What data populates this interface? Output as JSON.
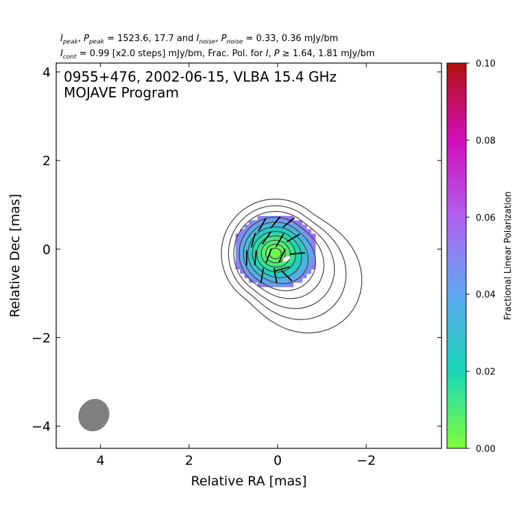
{
  "header": {
    "line1": {
      "i": "I",
      "i_sub": "peak",
      "p": "P",
      "p_sub": "peak",
      "peak_vals": "= 1523.6, 17.7 and",
      "in": "I",
      "in_sub": "noise",
      "pn": "P",
      "pn_sub": "noise",
      "noise_vals": "= 0.33, 0.36 mJy/bm"
    },
    "line2": {
      "ic": "I",
      "ic_sub": "cont",
      "cont_vals": "= 0.99 [x2.0 steps] mJy/bm, Frac. Pol. for",
      "ii": "I",
      "pp": "P",
      "ge": "≥",
      "thresh_vals": "1.64, 1.81 mJy/bm"
    }
  },
  "chart_data": {
    "type": "heatmap",
    "title_lines": [
      "0955+476, 2002-06-15, VLBA 15.4 GHz",
      "MOJAVE Program"
    ],
    "xlabel": "Relative RA [mas]",
    "ylabel": "Relative Dec [mas]",
    "xlim": [
      5.0,
      -3.7
    ],
    "ylim": [
      -4.5,
      4.2
    ],
    "xticks": [
      4,
      2,
      0,
      -2
    ],
    "yticks": [
      4,
      2,
      0,
      -2,
      -4
    ],
    "xtick_labels": [
      "4",
      "2",
      "0",
      "−2"
    ],
    "ytick_labels": [
      "4",
      "2",
      "0",
      "−2",
      "−4"
    ],
    "beam": {
      "x": 4.15,
      "y": -3.75,
      "major_mas": 0.75,
      "minor_mas": 0.68,
      "pa_deg": 30,
      "color": "#808080"
    },
    "contours": {
      "center": [
        0.05,
        -0.1
      ],
      "radii_rx": [
        0.13,
        0.22,
        0.32,
        0.42,
        0.52,
        0.62,
        0.72,
        0.82,
        0.94,
        1.06,
        1.22
      ],
      "radii_ry": [
        0.12,
        0.21,
        0.3,
        0.4,
        0.5,
        0.6,
        0.71,
        0.82,
        0.95,
        1.08,
        1.23
      ],
      "color": "#404040"
    },
    "polarization": {
      "center": [
        0.05,
        -0.05
      ],
      "rx": 0.95,
      "ry": 0.85,
      "min_fp": 0.003,
      "max_fp": 0.055
    },
    "evpa_ticks": [
      {
        "x": 0.35,
        "y": 0.55,
        "angle": 60
      },
      {
        "x": 0.05,
        "y": 0.6,
        "angle": 50
      },
      {
        "x": -0.25,
        "y": 0.6,
        "angle": 40
      },
      {
        "x": 0.55,
        "y": 0.2,
        "angle": 75
      },
      {
        "x": 0.25,
        "y": 0.25,
        "angle": 55
      },
      {
        "x": -0.05,
        "y": 0.2,
        "angle": 60
      },
      {
        "x": -0.35,
        "y": 0.25,
        "angle": 30
      },
      {
        "x": 0.5,
        "y": -0.2,
        "angle": 85
      },
      {
        "x": 0.2,
        "y": -0.15,
        "angle": 70
      },
      {
        "x": -0.1,
        "y": -0.15,
        "angle": 65
      },
      {
        "x": -0.45,
        "y": -0.1,
        "angle": 5
      },
      {
        "x": 0.35,
        "y": -0.6,
        "angle": 80
      },
      {
        "x": 0.05,
        "y": -0.6,
        "angle": 100
      },
      {
        "x": -0.2,
        "y": -0.6,
        "angle": -45
      },
      {
        "x": 0.7,
        "y": -0.2,
        "angle": 90
      },
      {
        "x": -0.1,
        "y": -0.45,
        "angle": 15
      }
    ],
    "colorbar": {
      "label": "Fractional Linear Polarization",
      "min": 0.0,
      "max": 0.1,
      "ticks": [
        0.0,
        0.02,
        0.04,
        0.06,
        0.08,
        0.1
      ],
      "tick_labels": [
        "0.00",
        "0.02",
        "0.04",
        "0.06",
        "0.08",
        "0.10"
      ],
      "stops": [
        {
          "v": 0.0,
          "c": "#7fff3a"
        },
        {
          "v": 0.02,
          "c": "#19d6b8"
        },
        {
          "v": 0.04,
          "c": "#5fa8f0"
        },
        {
          "v": 0.06,
          "c": "#b061f0"
        },
        {
          "v": 0.08,
          "c": "#d10dba"
        },
        {
          "v": 0.1,
          "c": "#b0130f"
        }
      ]
    }
  }
}
